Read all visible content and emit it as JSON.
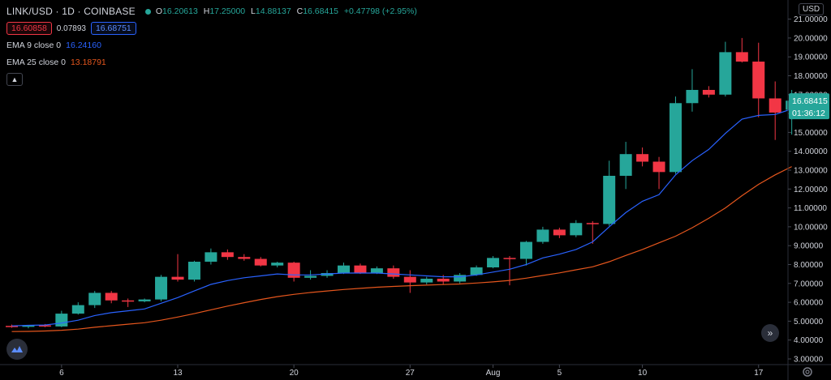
{
  "header": {
    "title": "LINK/USD · 1D · COINBASE",
    "status_color": "#26a69a",
    "ohlc": {
      "o_label": "O",
      "o": "16.20613",
      "h_label": "H",
      "h": "17.25000",
      "l_label": "L",
      "l": "14.88137",
      "c_label": "C",
      "c": "16.68415",
      "change": "+0.47798 (+2.95%)"
    },
    "bid": "16.60858",
    "spread": "0.07893",
    "ask": "16.68751",
    "collapse_icon": "chevron-up-icon"
  },
  "indicators": [
    {
      "label": "EMA 9 close 0",
      "value": "16.24160",
      "color": "#2962ff"
    },
    {
      "label": "EMA 25 close 0",
      "value": "13.18791",
      "color": "#e5561d"
    }
  ],
  "price_axis": {
    "currency": "USD",
    "last_price": "16.68415",
    "countdown": "01:36:12"
  },
  "chart_data": {
    "type": "candlestick",
    "symbol": "LINK/USD",
    "interval": "1D",
    "exchange": "COINBASE",
    "y_ticks": [
      "3.00000",
      "4.00000",
      "5.00000",
      "6.00000",
      "7.00000",
      "8.00000",
      "9.00000",
      "10.00000",
      "11.00000",
      "12.00000",
      "13.00000",
      "14.00000",
      "15.00000",
      "16.00000",
      "17.00000",
      "18.00000",
      "19.00000",
      "20.00000",
      "21.00000"
    ],
    "ylim": [
      3.0,
      21.0
    ],
    "x_ticks": [
      "6",
      "13",
      "20",
      "27",
      "Aug",
      "5",
      "10",
      "17"
    ],
    "candles": [
      {
        "o": 4.75,
        "h": 4.82,
        "l": 4.65,
        "c": 4.7
      },
      {
        "o": 4.7,
        "h": 4.8,
        "l": 4.62,
        "c": 4.78
      },
      {
        "o": 4.78,
        "h": 4.85,
        "l": 4.68,
        "c": 4.72
      },
      {
        "o": 4.72,
        "h": 5.55,
        "l": 4.68,
        "c": 5.4
      },
      {
        "o": 5.4,
        "h": 6.0,
        "l": 5.35,
        "c": 5.85
      },
      {
        "o": 5.85,
        "h": 6.6,
        "l": 5.7,
        "c": 6.5
      },
      {
        "o": 6.5,
        "h": 6.6,
        "l": 5.95,
        "c": 6.1
      },
      {
        "o": 6.1,
        "h": 6.2,
        "l": 5.75,
        "c": 6.05
      },
      {
        "o": 6.05,
        "h": 6.2,
        "l": 6.0,
        "c": 6.15
      },
      {
        "o": 6.15,
        "h": 7.45,
        "l": 6.05,
        "c": 7.35
      },
      {
        "o": 7.35,
        "h": 8.55,
        "l": 7.1,
        "c": 7.2
      },
      {
        "o": 7.2,
        "h": 8.2,
        "l": 7.1,
        "c": 8.15
      },
      {
        "o": 8.15,
        "h": 8.85,
        "l": 8.0,
        "c": 8.65
      },
      {
        "o": 8.65,
        "h": 8.8,
        "l": 8.25,
        "c": 8.4
      },
      {
        "o": 8.4,
        "h": 8.55,
        "l": 8.2,
        "c": 8.3
      },
      {
        "o": 8.3,
        "h": 8.4,
        "l": 7.9,
        "c": 7.95
      },
      {
        "o": 7.95,
        "h": 8.15,
        "l": 7.85,
        "c": 8.1
      },
      {
        "o": 8.1,
        "h": 8.15,
        "l": 7.1,
        "c": 7.3
      },
      {
        "o": 7.3,
        "h": 7.7,
        "l": 7.2,
        "c": 7.4
      },
      {
        "o": 7.4,
        "h": 7.7,
        "l": 7.3,
        "c": 7.55
      },
      {
        "o": 7.55,
        "h": 8.1,
        "l": 7.5,
        "c": 7.95
      },
      {
        "o": 7.95,
        "h": 8.05,
        "l": 7.5,
        "c": 7.55
      },
      {
        "o": 7.55,
        "h": 7.9,
        "l": 7.5,
        "c": 7.8
      },
      {
        "o": 7.8,
        "h": 7.95,
        "l": 7.25,
        "c": 7.35
      },
      {
        "o": 7.35,
        "h": 7.7,
        "l": 6.5,
        "c": 7.05
      },
      {
        "o": 7.05,
        "h": 7.35,
        "l": 6.95,
        "c": 7.25
      },
      {
        "o": 7.25,
        "h": 7.45,
        "l": 6.95,
        "c": 7.1
      },
      {
        "o": 7.1,
        "h": 7.55,
        "l": 7.0,
        "c": 7.45
      },
      {
        "o": 7.45,
        "h": 7.95,
        "l": 7.4,
        "c": 7.85
      },
      {
        "o": 7.85,
        "h": 8.45,
        "l": 7.8,
        "c": 8.35
      },
      {
        "o": 8.35,
        "h": 8.45,
        "l": 6.9,
        "c": 8.3
      },
      {
        "o": 8.3,
        "h": 9.25,
        "l": 7.95,
        "c": 9.2
      },
      {
        "o": 9.2,
        "h": 10.0,
        "l": 9.1,
        "c": 9.85
      },
      {
        "o": 9.85,
        "h": 9.95,
        "l": 9.4,
        "c": 9.55
      },
      {
        "o": 9.55,
        "h": 10.35,
        "l": 9.45,
        "c": 10.2
      },
      {
        "o": 10.2,
        "h": 10.3,
        "l": 9.1,
        "c": 10.15
      },
      {
        "o": 10.15,
        "h": 13.5,
        "l": 10.05,
        "c": 12.7
      },
      {
        "o": 12.7,
        "h": 14.5,
        "l": 12.0,
        "c": 13.85
      },
      {
        "o": 13.85,
        "h": 14.2,
        "l": 13.2,
        "c": 13.45
      },
      {
        "o": 13.45,
        "h": 13.7,
        "l": 12.0,
        "c": 12.9
      },
      {
        "o": 12.9,
        "h": 16.9,
        "l": 12.8,
        "c": 16.55
      },
      {
        "o": 16.55,
        "h": 18.35,
        "l": 16.1,
        "c": 17.25
      },
      {
        "o": 17.25,
        "h": 17.45,
        "l": 16.85,
        "c": 17.0
      },
      {
        "o": 17.0,
        "h": 19.8,
        "l": 16.9,
        "c": 19.25
      },
      {
        "o": 19.25,
        "h": 20.0,
        "l": 18.7,
        "c": 18.75
      },
      {
        "o": 18.75,
        "h": 19.75,
        "l": 15.8,
        "c": 16.8
      },
      {
        "o": 16.8,
        "h": 17.7,
        "l": 14.6,
        "c": 16.05
      },
      {
        "o": 16.2,
        "h": 17.25,
        "l": 14.88,
        "c": 16.68
      }
    ],
    "ema9": [
      4.75,
      4.78,
      4.8,
      4.9,
      5.05,
      5.3,
      5.45,
      5.55,
      5.65,
      5.95,
      6.25,
      6.6,
      6.95,
      7.15,
      7.3,
      7.4,
      7.5,
      7.45,
      7.45,
      7.5,
      7.55,
      7.55,
      7.55,
      7.5,
      7.45,
      7.4,
      7.35,
      7.35,
      7.45,
      7.6,
      7.75,
      8.0,
      8.35,
      8.55,
      8.8,
      9.2,
      10.0,
      10.75,
      11.35,
      11.7,
      12.75,
      13.5,
      14.1,
      14.95,
      15.7,
      15.9,
      15.95,
      16.24
    ],
    "ema25": [
      4.45,
      4.46,
      4.48,
      4.52,
      4.58,
      4.68,
      4.76,
      4.84,
      4.92,
      5.05,
      5.22,
      5.4,
      5.6,
      5.8,
      5.98,
      6.15,
      6.3,
      6.42,
      6.52,
      6.6,
      6.68,
      6.74,
      6.8,
      6.84,
      6.88,
      6.91,
      6.94,
      6.97,
      7.02,
      7.08,
      7.16,
      7.28,
      7.42,
      7.56,
      7.72,
      7.88,
      8.15,
      8.48,
      8.8,
      9.15,
      9.5,
      9.95,
      10.45,
      11.0,
      11.65,
      12.25,
      12.75,
      13.19
    ]
  },
  "colors": {
    "up": "#26a69a",
    "down": "#f23645",
    "ema9": "#2962ff",
    "ema25": "#e5561d",
    "background": "#000000",
    "axis_text": "#d1d4dc"
  }
}
